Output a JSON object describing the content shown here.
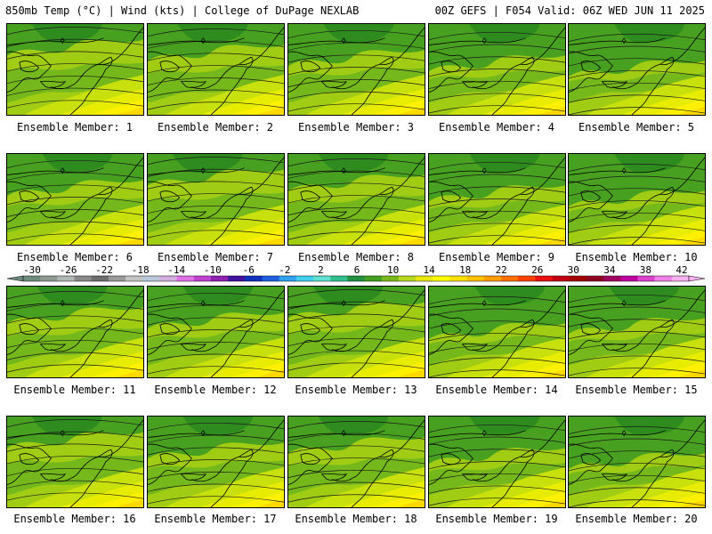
{
  "header": {
    "left": "850mb Temp (°C) | Wind (kts) | College of DuPage NEXLAB",
    "right": "00Z GEFS | F054 Valid: 06Z WED JUN 11 2025"
  },
  "members": [
    {
      "label": "Ensemble Member: 1",
      "variant": 0
    },
    {
      "label": "Ensemble Member: 2",
      "variant": 1
    },
    {
      "label": "Ensemble Member: 3",
      "variant": 2
    },
    {
      "label": "Ensemble Member: 4",
      "variant": 3
    },
    {
      "label": "Ensemble Member: 5",
      "variant": 4
    },
    {
      "label": "Ensemble Member: 6",
      "variant": 2
    },
    {
      "label": "Ensemble Member: 7",
      "variant": 0
    },
    {
      "label": "Ensemble Member: 8",
      "variant": 1
    },
    {
      "label": "Ensemble Member: 9",
      "variant": 3
    },
    {
      "label": "Ensemble Member: 10",
      "variant": 4
    },
    {
      "label": "Ensemble Member: 11",
      "variant": 1
    },
    {
      "label": "Ensemble Member: 12",
      "variant": 2
    },
    {
      "label": "Ensemble Member: 13",
      "variant": 0
    },
    {
      "label": "Ensemble Member: 14",
      "variant": 4
    },
    {
      "label": "Ensemble Member: 15",
      "variant": 3
    },
    {
      "label": "Ensemble Member: 16",
      "variant": 0
    },
    {
      "label": "Ensemble Member: 17",
      "variant": 2
    },
    {
      "label": "Ensemble Member: 18",
      "variant": 1
    },
    {
      "label": "Ensemble Member: 19",
      "variant": 3
    },
    {
      "label": "Ensemble Member: 20",
      "variant": 4
    }
  ],
  "colorbar": {
    "labels": [
      "-30",
      "-26",
      "-22",
      "-18",
      "-14",
      "-10",
      "-6",
      "-2",
      "2",
      "6",
      "10",
      "14",
      "18",
      "22",
      "26",
      "30",
      "34",
      "38",
      "42"
    ],
    "colors": [
      "#6f8a7e",
      "#8c9a93",
      "#b0b7b4",
      "#8a8a8a",
      "#6e6e6e",
      "#9a9a9a",
      "#c4c4c4",
      "#b8c8d8",
      "#d4b0e0",
      "#e070e8",
      "#c040d0",
      "#9020b0",
      "#4010a0",
      "#1030c0",
      "#2060e0",
      "#30a0f0",
      "#40d0f0",
      "#60e0d0",
      "#30c090",
      "#209040",
      "#40a020",
      "#78b818",
      "#b8d820",
      "#e8e810",
      "#ffff00",
      "#ffe000",
      "#ffc000",
      "#ff9c00",
      "#ff7000",
      "#ff4000",
      "#e81010",
      "#c00010",
      "#a00000",
      "#900020",
      "#a00060",
      "#c000a0",
      "#e040d0",
      "#f080e8",
      "#f8b0f0"
    ],
    "temp_palette": [
      "#2e8c1e",
      "#48a020",
      "#74b81c",
      "#a0cc14",
      "#c8e00c",
      "#e8ec00",
      "#fff000",
      "#ffd800"
    ]
  }
}
